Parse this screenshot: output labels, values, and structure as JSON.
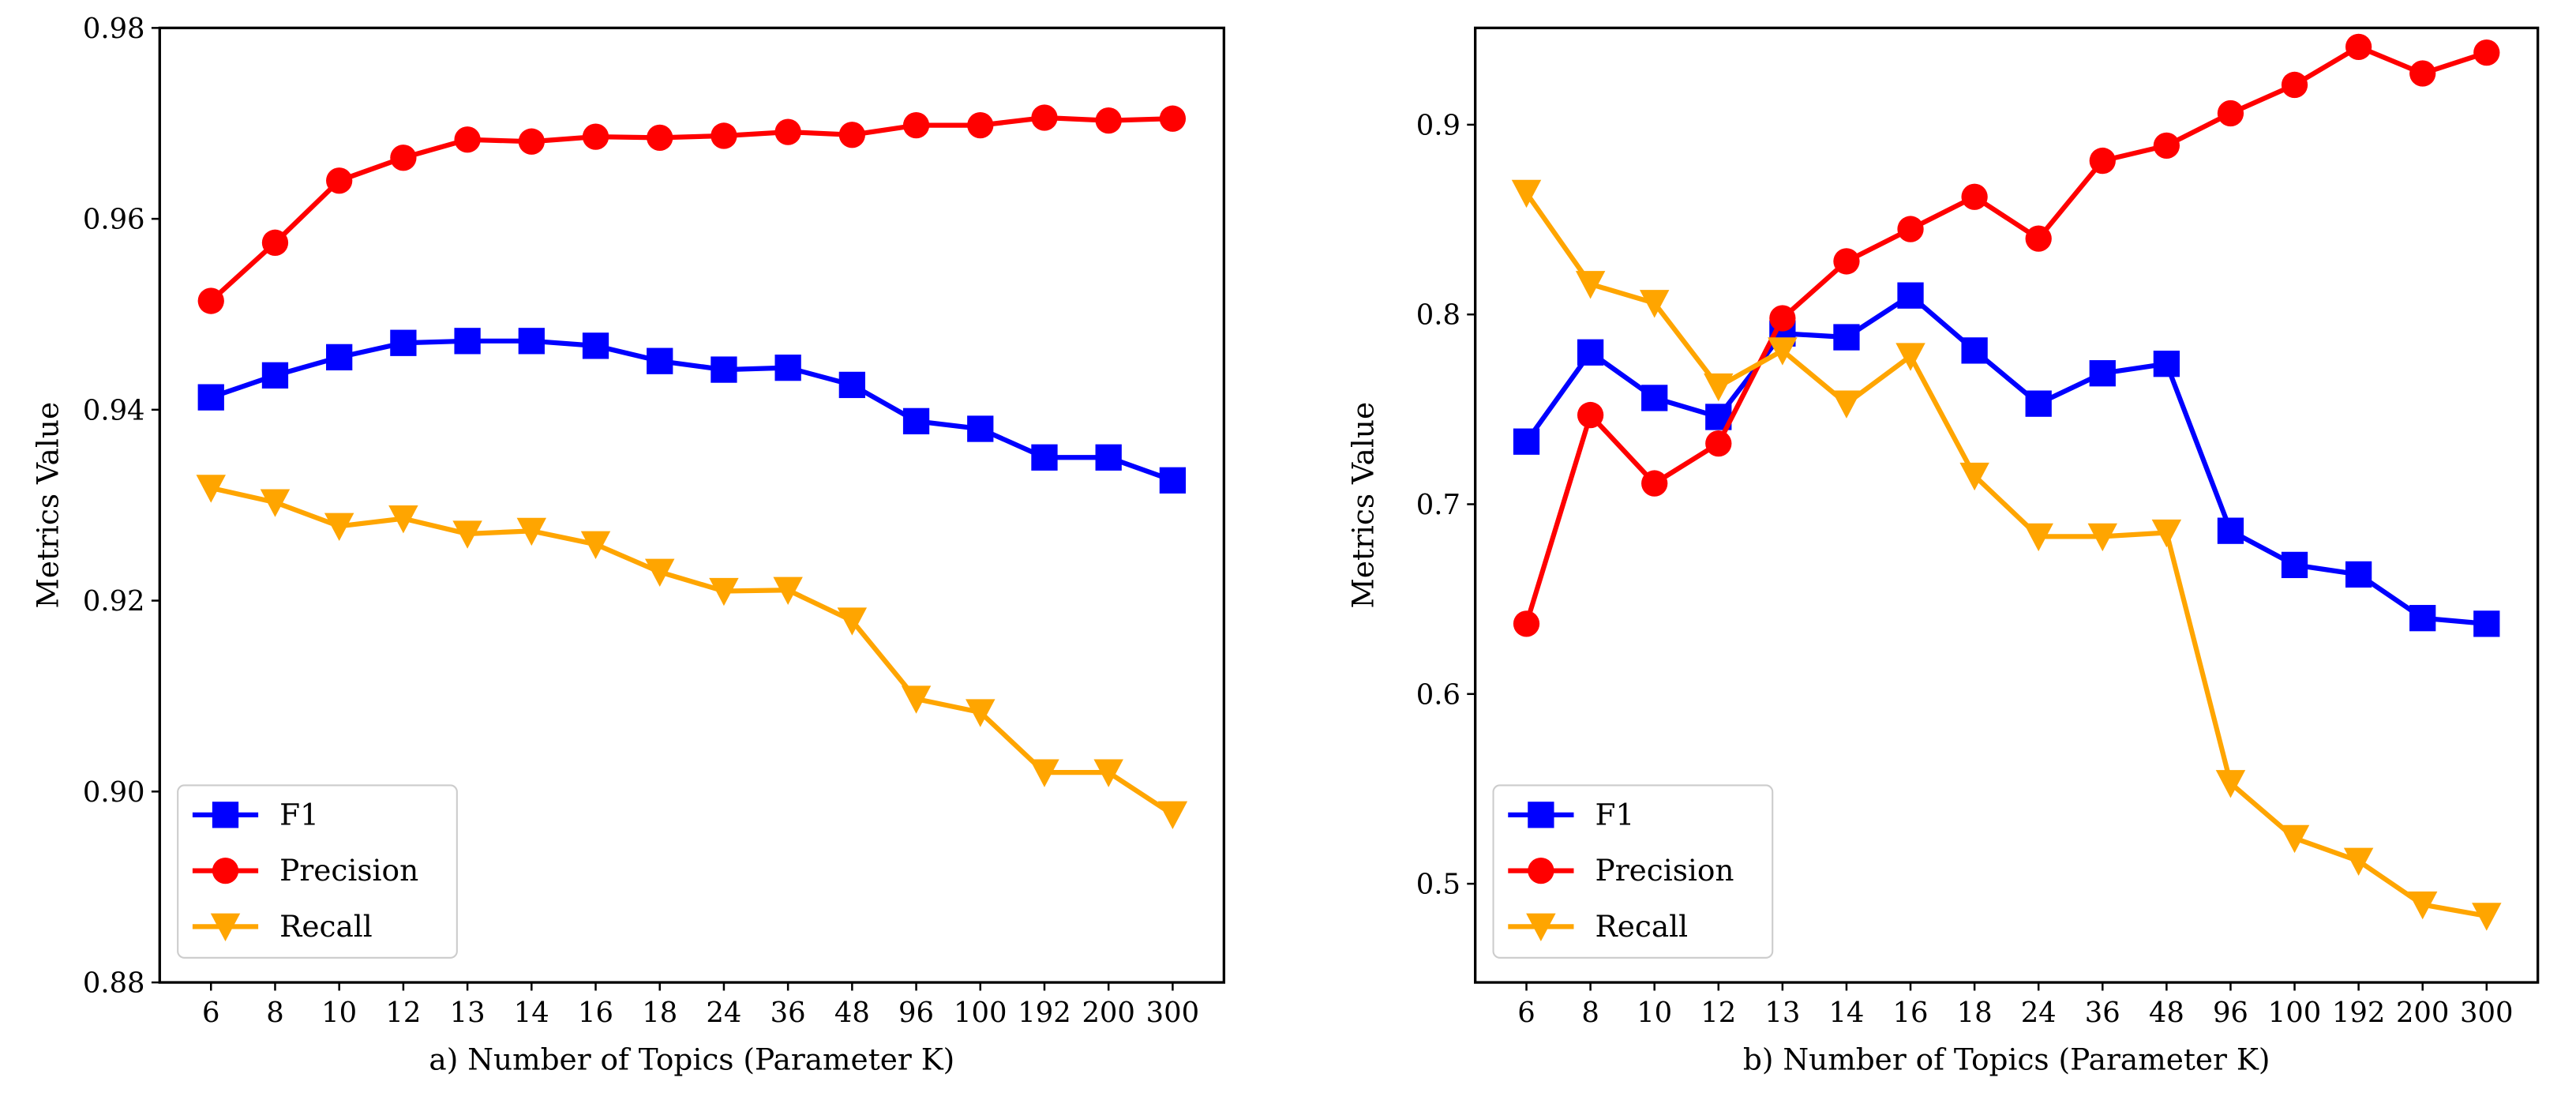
{
  "chart_data": [
    {
      "type": "line",
      "panel": "a",
      "x": [
        "6",
        "8",
        "10",
        "12",
        "13",
        "14",
        "16",
        "18",
        "24",
        "36",
        "48",
        "96",
        "100",
        "192",
        "200",
        "300"
      ],
      "xlabel": "a) Number of Topics (Parameter K)",
      "ylabel": "Metrics Value",
      "ylim": [
        0.88,
        0.98
      ],
      "yticks": [
        0.88,
        0.9,
        0.92,
        0.94,
        0.96,
        0.98
      ],
      "ytick_labels": [
        "0.88",
        "0.90",
        "0.92",
        "0.94",
        "0.96",
        "0.98"
      ],
      "legend_position": "lower-left",
      "grid": false,
      "series": [
        {
          "name": "F1",
          "color": "#0000ff",
          "marker": "square",
          "values": [
            0.9413,
            0.9436,
            0.9455,
            0.947,
            0.9472,
            0.9472,
            0.9467,
            0.9451,
            0.9442,
            0.9444,
            0.9426,
            0.9388,
            0.938,
            0.935,
            0.935,
            0.9326
          ]
        },
        {
          "name": "Precision",
          "color": "#ff0000",
          "marker": "circle",
          "values": [
            0.9514,
            0.9575,
            0.964,
            0.9664,
            0.9683,
            0.9681,
            0.9686,
            0.9685,
            0.9687,
            0.9691,
            0.9688,
            0.9698,
            0.9698,
            0.9706,
            0.9703,
            0.9705
          ]
        },
        {
          "name": "Recall",
          "color": "#ffa500",
          "marker": "triangle-down",
          "values": [
            0.9318,
            0.9303,
            0.9278,
            0.9286,
            0.927,
            0.9273,
            0.9259,
            0.923,
            0.921,
            0.9211,
            0.9179,
            0.9097,
            0.9083,
            0.902,
            0.902,
            0.8976
          ]
        }
      ]
    },
    {
      "type": "line",
      "panel": "b",
      "x": [
        "6",
        "8",
        "10",
        "12",
        "13",
        "14",
        "16",
        "18",
        "24",
        "36",
        "48",
        "96",
        "100",
        "192",
        "200",
        "300"
      ],
      "xlabel": "b) Number of Topics (Parameter K)",
      "ylabel": "Metrics Value",
      "ylim": [
        0.448,
        0.951
      ],
      "yticks": [
        0.5,
        0.6,
        0.7,
        0.8,
        0.9
      ],
      "ytick_labels": [
        "0.5",
        "0.6",
        "0.7",
        "0.8",
        "0.9"
      ],
      "legend_position": "lower-left",
      "grid": false,
      "series": [
        {
          "name": "F1",
          "color": "#0000ff",
          "marker": "square",
          "values": [
            0.733,
            0.78,
            0.756,
            0.746,
            0.79,
            0.788,
            0.81,
            0.781,
            0.753,
            0.769,
            0.774,
            0.686,
            0.668,
            0.663,
            0.64,
            0.637
          ]
        },
        {
          "name": "Precision",
          "color": "#ff0000",
          "marker": "circle",
          "values": [
            0.637,
            0.747,
            0.711,
            0.732,
            0.798,
            0.828,
            0.845,
            0.862,
            0.84,
            0.881,
            0.889,
            0.906,
            0.921,
            0.941,
            0.927,
            0.938
          ]
        },
        {
          "name": "Recall",
          "color": "#ffa500",
          "marker": "triangle-down",
          "values": [
            0.864,
            0.816,
            0.806,
            0.762,
            0.781,
            0.753,
            0.778,
            0.715,
            0.683,
            0.683,
            0.685,
            0.553,
            0.524,
            0.512,
            0.489,
            0.483
          ]
        }
      ]
    }
  ]
}
